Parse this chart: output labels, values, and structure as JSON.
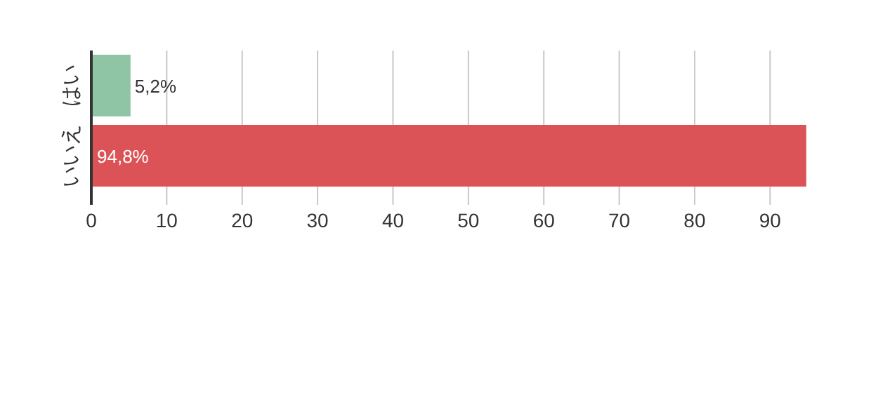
{
  "chart_data": {
    "type": "bar",
    "orientation": "horizontal",
    "categories": [
      "はい",
      "いいえ"
    ],
    "values": [
      5.2,
      94.8
    ],
    "colors": [
      "#8fc4a5",
      "#db5356"
    ],
    "value_labels": [
      "5,2%",
      "94,8%"
    ],
    "xlim": [
      0,
      95
    ],
    "xticks": [
      0,
      10,
      20,
      30,
      40,
      50,
      60,
      70,
      80,
      90
    ],
    "grid": "x"
  }
}
